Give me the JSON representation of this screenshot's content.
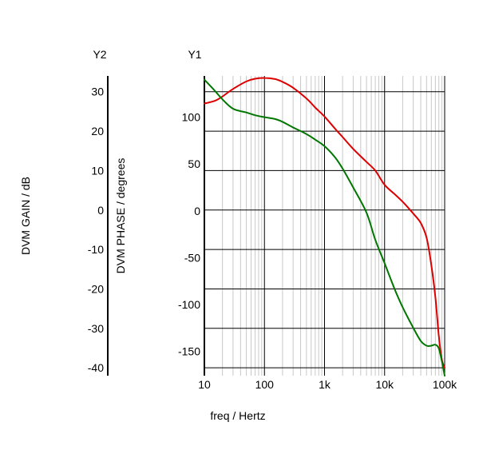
{
  "chart_data": {
    "type": "line",
    "x_scale": "log",
    "xlabel": "freq / Hertz",
    "xlim": [
      10,
      100000
    ],
    "x_ticks": [
      10,
      100,
      1000,
      10000,
      100000
    ],
    "x_tick_labels": [
      "10",
      "100",
      "1k",
      "10k",
      "100k"
    ],
    "grid": true,
    "axes": {
      "y1": {
        "header": "Y1",
        "label": "DVM PHASE / degrees",
        "ylim": [
          -170,
          150
        ],
        "ticks": [
          100,
          50,
          0,
          -50,
          -100,
          -150
        ],
        "tick_labels": [
          "100",
          "50",
          "0",
          "-50",
          "-100",
          "-150"
        ]
      },
      "y2": {
        "header": "Y2",
        "label": "DVM GAIN / dB",
        "ylim": [
          -42,
          34
        ],
        "ticks": [
          30,
          20,
          10,
          0,
          -10,
          -20,
          -30,
          -40
        ],
        "tick_labels": [
          "30",
          "20",
          "10",
          "0",
          "-10",
          "-20",
          "-30",
          "-40"
        ]
      }
    },
    "series": [
      {
        "axis": "y2",
        "color": "#dd0000",
        "x": [
          10,
          15,
          20,
          30,
          50,
          70,
          100,
          150,
          200,
          300,
          500,
          700,
          1000,
          1500,
          2000,
          3000,
          5000,
          7000,
          10000,
          15000,
          20000,
          30000,
          40000,
          50000,
          60000,
          70000,
          80000,
          90000,
          100000
        ],
        "y": [
          27,
          27.7,
          28.8,
          30.7,
          32.6,
          33.3,
          33.5,
          33.2,
          32.5,
          31,
          28.3,
          26,
          23.7,
          20.6,
          18.5,
          15.5,
          12.2,
          10,
          6.4,
          3.9,
          2.1,
          -0.9,
          -3.3,
          -7,
          -14,
          -22,
          -32,
          -38,
          -40
        ]
      },
      {
        "axis": "y1",
        "color": "#007700",
        "x": [
          10,
          15,
          20,
          30,
          50,
          70,
          100,
          150,
          200,
          300,
          500,
          700,
          1000,
          1500,
          2000,
          3000,
          5000,
          7000,
          10000,
          15000,
          20000,
          30000,
          40000,
          50000,
          60000,
          70000,
          80000,
          90000,
          100000
        ],
        "y": [
          146,
          134,
          125,
          115,
          111,
          108,
          106,
          104,
          101,
          95,
          88,
          82,
          75,
          63,
          51,
          31,
          4,
          -25,
          -50,
          -79,
          -97,
          -119,
          -133,
          -138,
          -138,
          -137,
          -141,
          -155,
          -170
        ]
      }
    ]
  }
}
